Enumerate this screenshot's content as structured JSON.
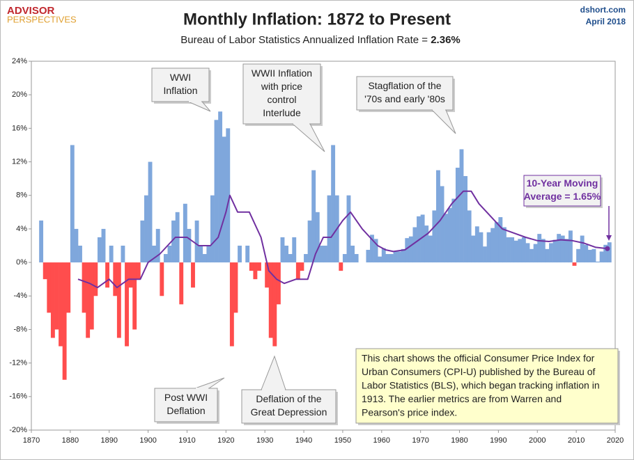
{
  "header": {
    "logo_top": "ADVISOR",
    "logo_bottom": "PERSPECTIVES",
    "site": "dshort.com",
    "date": "April 2018"
  },
  "chart_data": {
    "type": "area",
    "title": "Monthly Inflation: 1872 to Present",
    "subtitle": "Bureau of Labor Statistics Annualized Inflation Rate = ",
    "subtitle_value": "2.36%",
    "xlim": [
      1870,
      2020
    ],
    "xticks": [
      1870,
      1880,
      1890,
      1900,
      1910,
      1920,
      1930,
      1940,
      1950,
      1960,
      1970,
      1980,
      1990,
      2000,
      2010,
      2020
    ],
    "ylim": [
      -20,
      24
    ],
    "yticks": [
      {
        "value": -20,
        "label": "-20%"
      },
      {
        "value": -16,
        "label": "-16%"
      },
      {
        "value": -12,
        "label": "-12%"
      },
      {
        "value": -8,
        "label": "-8%"
      },
      {
        "value": -4,
        "label": "-4%"
      },
      {
        "value": 0,
        "label": "0%"
      },
      {
        "value": 4,
        "label": "4%"
      },
      {
        "value": 8,
        "label": "8%"
      },
      {
        "value": 12,
        "label": "12%"
      },
      {
        "value": 16,
        "label": "16%"
      },
      {
        "value": 20,
        "label": "20%"
      },
      {
        "value": 24,
        "label": "24%"
      }
    ],
    "grid": false,
    "series": [
      {
        "color": "#7fa7dc",
        "negative_color": "#ff4d4d",
        "x": [
          1872,
          1873,
          1874,
          1875,
          1876,
          1877,
          1878,
          1879,
          1880,
          1881,
          1882,
          1883,
          1884,
          1885,
          1886,
          1887,
          1888,
          1889,
          1890,
          1891,
          1892,
          1893,
          1894,
          1895,
          1896,
          1897,
          1898,
          1899,
          1900,
          1901,
          1902,
          1903,
          1904,
          1905,
          1906,
          1907,
          1908,
          1909,
          1910,
          1911,
          1912,
          1913,
          1914,
          1915,
          1916,
          1917,
          1918,
          1919,
          1920,
          1921,
          1922,
          1923,
          1924,
          1925,
          1926,
          1927,
          1928,
          1929,
          1930,
          1931,
          1932,
          1933,
          1934,
          1935,
          1936,
          1937,
          1938,
          1939,
          1940,
          1941,
          1942,
          1943,
          1944,
          1945,
          1946,
          1947,
          1948,
          1949,
          1950,
          1951,
          1952,
          1953,
          1954,
          1955,
          1956,
          1957,
          1958,
          1959,
          1960,
          1961,
          1962,
          1963,
          1964,
          1965,
          1966,
          1967,
          1968,
          1969,
          1970,
          1971,
          1972,
          1973,
          1974,
          1975,
          1976,
          1977,
          1978,
          1979,
          1980,
          1981,
          1982,
          1983,
          1984,
          1985,
          1986,
          1987,
          1988,
          1989,
          1990,
          1991,
          1992,
          1993,
          1994,
          1995,
          1996,
          1997,
          1998,
          1999,
          2000,
          2001,
          2002,
          2003,
          2004,
          2005,
          2006,
          2007,
          2008,
          2009,
          2010,
          2011,
          2012,
          2013,
          2014,
          2015,
          2016,
          2017,
          2018
        ],
        "values": [
          5,
          -2,
          -6,
          -9,
          -8,
          -10,
          -14,
          -6,
          14,
          4,
          2,
          -6,
          -9,
          -8,
          -4,
          3,
          4,
          -3,
          2,
          -4,
          -9,
          2,
          -10,
          -3,
          -8,
          -2,
          5,
          8,
          12,
          2,
          4,
          -4,
          1,
          2,
          5,
          6,
          -5,
          7,
          4,
          -3,
          5,
          2,
          1,
          2,
          8,
          17,
          18,
          15,
          16,
          -10,
          -6,
          2,
          0,
          2,
          -1,
          -2,
          -1,
          0,
          -3,
          -9,
          -10,
          -5,
          3,
          2,
          1,
          3,
          -2,
          -1,
          1,
          5,
          11,
          6,
          2,
          2,
          8,
          14,
          8,
          -1,
          1,
          8,
          2,
          1,
          0,
          0,
          1.5,
          3.3,
          2.8,
          0.7,
          1.7,
          1.0,
          1.0,
          1.3,
          1.3,
          1.6,
          2.9,
          3.1,
          4.2,
          5.5,
          5.7,
          4.4,
          3.2,
          6.2,
          11.0,
          9.1,
          5.8,
          6.5,
          7.6,
          11.3,
          13.5,
          10.3,
          6.2,
          3.2,
          4.3,
          3.6,
          1.9,
          3.6,
          4.1,
          4.8,
          5.4,
          4.2,
          3.0,
          3.0,
          2.6,
          2.8,
          3.0,
          2.3,
          1.6,
          2.2,
          3.4,
          2.8,
          1.6,
          2.3,
          2.7,
          3.4,
          3.2,
          2.8,
          3.8,
          -0.4,
          1.6,
          3.2,
          2.1,
          1.5,
          1.6,
          0.1,
          1.3,
          2.1,
          2.4
        ]
      },
      {
        "color": "#7030a0",
        "x": [
          1882,
          1885,
          1887,
          1890,
          1892,
          1895,
          1898,
          1900,
          1903,
          1905,
          1907,
          1910,
          1913,
          1916,
          1918,
          1920,
          1921,
          1923,
          1926,
          1929,
          1931,
          1933,
          1935,
          1938,
          1941,
          1943,
          1945,
          1947,
          1950,
          1952,
          1955,
          1957,
          1959,
          1961,
          1963,
          1966,
          1969,
          1972,
          1975,
          1978,
          1981,
          1983,
          1985,
          1988,
          1991,
          1994,
          1997,
          2000,
          2003,
          2006,
          2009,
          2012,
          2015,
          2018
        ],
        "values": [
          -2,
          -2.5,
          -3,
          -2,
          -3,
          -2,
          -2,
          0,
          1,
          2,
          3,
          3,
          2,
          2,
          3,
          6,
          8,
          6,
          6,
          3,
          -1,
          -2,
          -2.5,
          -2,
          -2,
          1,
          3,
          3,
          5,
          6,
          4,
          3,
          2,
          1.5,
          1.3,
          1.5,
          2.5,
          3.5,
          5,
          7,
          8.5,
          8.5,
          7,
          5.5,
          4,
          3.5,
          3,
          2.6,
          2.5,
          2.7,
          2.6,
          2.3,
          1.8,
          1.65
        ]
      }
    ],
    "annotations": [
      {
        "lines": [
          "WWI",
          "Inflation"
        ]
      },
      {
        "lines": [
          "WWII Inflation",
          "with price",
          "control",
          "Interlude"
        ]
      },
      {
        "lines": [
          "Stagflation of the",
          "'70s and early '80s"
        ]
      },
      {
        "lines": [
          "10-Year Moving",
          "Average = 1.65%"
        ]
      },
      {
        "lines": [
          "Post WWI",
          "Deflation"
        ]
      },
      {
        "lines": [
          "Deflation of the",
          "Great Depression"
        ]
      }
    ],
    "note": [
      "This chart shows the official Consumer Price Index for",
      "Urban Consumers (CPI-U) published by the Bureau of",
      "Labor Statistics (BLS), which began tracking inflation in",
      "1913.  The earlier metrics are from Warren and",
      "Pearson's  price index."
    ]
  }
}
